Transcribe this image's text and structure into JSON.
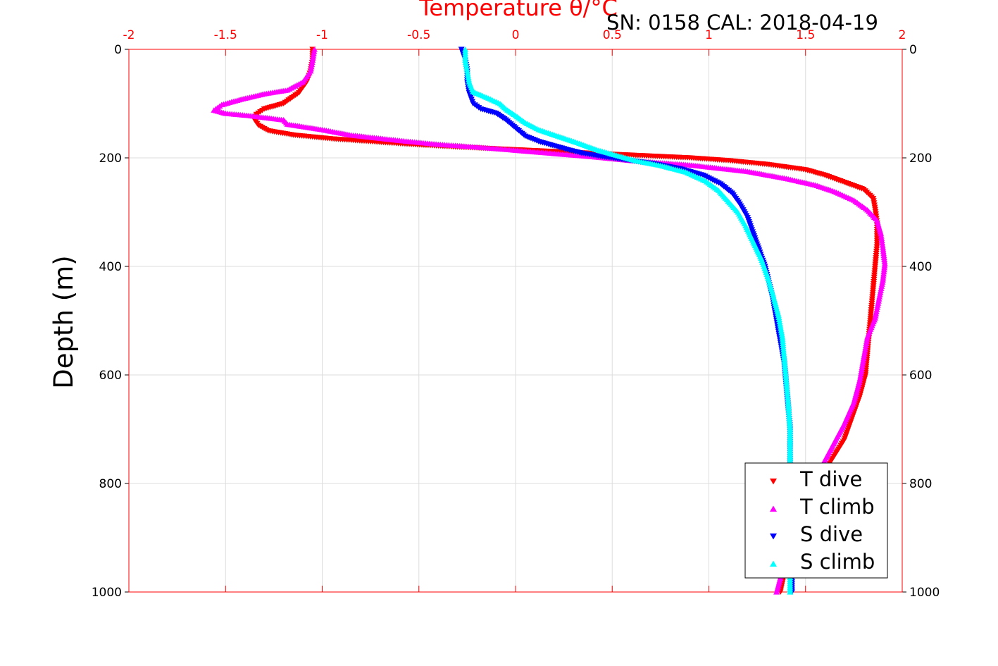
{
  "chart_data": {
    "type": "scatter",
    "title": "Temperature θ/°C",
    "subtitle": "SN: 0158  CAL: 2018-04-19",
    "xlabel": "Temperature θ/°C",
    "ylabel": "Depth (m)",
    "xlim": [
      -2,
      2
    ],
    "ylim": [
      0,
      1000
    ],
    "y_reversed": true,
    "grid": true,
    "x_ticks": [
      "-2",
      "-1.5",
      "-1",
      "-0.5",
      "0",
      "0.5",
      "1",
      "1.5",
      "2"
    ],
    "y_ticks": [
      "0",
      "200",
      "400",
      "600",
      "800",
      "1000"
    ],
    "legend_position": "bottom-right",
    "series": [
      {
        "name": "T dive",
        "color": "#ff0000",
        "marker": "triangle-down",
        "points": [
          [
            -1.05,
            0
          ],
          [
            -1.05,
            20
          ],
          [
            -1.06,
            40
          ],
          [
            -1.08,
            60
          ],
          [
            -1.12,
            80
          ],
          [
            -1.2,
            100
          ],
          [
            -1.3,
            110
          ],
          [
            -1.34,
            120
          ],
          [
            -1.35,
            130
          ],
          [
            -1.33,
            140
          ],
          [
            -1.28,
            150
          ],
          [
            -1.15,
            158
          ],
          [
            -0.95,
            165
          ],
          [
            -0.75,
            170
          ],
          [
            -0.55,
            175
          ],
          [
            -0.3,
            180
          ],
          [
            0.0,
            185
          ],
          [
            0.3,
            190
          ],
          [
            0.6,
            195
          ],
          [
            0.9,
            200
          ],
          [
            1.1,
            205
          ],
          [
            1.3,
            212
          ],
          [
            1.5,
            222
          ],
          [
            1.6,
            232
          ],
          [
            1.7,
            245
          ],
          [
            1.8,
            258
          ],
          [
            1.85,
            275
          ],
          [
            1.86,
            295
          ],
          [
            1.87,
            320
          ],
          [
            1.87,
            360
          ],
          [
            1.86,
            400
          ],
          [
            1.85,
            440
          ],
          [
            1.84,
            480
          ],
          [
            1.83,
            520
          ],
          [
            1.82,
            560
          ],
          [
            1.81,
            600
          ],
          [
            1.78,
            640
          ],
          [
            1.74,
            680
          ],
          [
            1.7,
            720
          ],
          [
            1.63,
            760
          ],
          [
            1.56,
            800
          ],
          [
            1.5,
            850
          ],
          [
            1.45,
            900
          ],
          [
            1.4,
            950
          ],
          [
            1.37,
            1000
          ]
        ]
      },
      {
        "name": "T climb",
        "color": "#ff00ff",
        "marker": "triangle-up",
        "points": [
          [
            -1.04,
            0
          ],
          [
            -1.05,
            20
          ],
          [
            -1.06,
            40
          ],
          [
            -1.1,
            60
          ],
          [
            -1.18,
            75
          ],
          [
            -1.3,
            82
          ],
          [
            -1.42,
            92
          ],
          [
            -1.52,
            102
          ],
          [
            -1.56,
            112
          ],
          [
            -1.5,
            118
          ],
          [
            -1.38,
            122
          ],
          [
            -1.2,
            130
          ],
          [
            -1.18,
            138
          ],
          [
            -1.0,
            148
          ],
          [
            -0.85,
            158
          ],
          [
            -0.6,
            168
          ],
          [
            -0.4,
            175
          ],
          [
            -0.2,
            180
          ],
          [
            0.0,
            186
          ],
          [
            0.2,
            192
          ],
          [
            0.4,
            198
          ],
          [
            0.6,
            205
          ],
          [
            0.9,
            213
          ],
          [
            1.2,
            225
          ],
          [
            1.4,
            238
          ],
          [
            1.55,
            250
          ],
          [
            1.65,
            262
          ],
          [
            1.75,
            278
          ],
          [
            1.82,
            296
          ],
          [
            1.87,
            315
          ],
          [
            1.89,
            340
          ],
          [
            1.9,
            365
          ],
          [
            1.91,
            395
          ],
          [
            1.9,
            425
          ],
          [
            1.88,
            460
          ],
          [
            1.86,
            495
          ],
          [
            1.82,
            530
          ],
          [
            1.8,
            570
          ],
          [
            1.78,
            610
          ],
          [
            1.75,
            650
          ],
          [
            1.7,
            690
          ],
          [
            1.64,
            730
          ],
          [
            1.58,
            770
          ],
          [
            1.52,
            810
          ],
          [
            1.47,
            860
          ],
          [
            1.42,
            910
          ],
          [
            1.38,
            960
          ],
          [
            1.35,
            1000
          ]
        ]
      },
      {
        "name": "S dive",
        "color": "#0000ff",
        "marker": "triangle-down",
        "points": [
          [
            -0.28,
            0
          ],
          [
            -0.26,
            20
          ],
          [
            -0.25,
            40
          ],
          [
            -0.25,
            60
          ],
          [
            -0.24,
            80
          ],
          [
            -0.22,
            100
          ],
          [
            -0.18,
            110
          ],
          [
            -0.1,
            118
          ],
          [
            -0.05,
            130
          ],
          [
            0.0,
            145
          ],
          [
            0.05,
            160
          ],
          [
            0.12,
            170
          ],
          [
            0.2,
            178
          ],
          [
            0.28,
            186
          ],
          [
            0.35,
            192
          ],
          [
            0.45,
            198
          ],
          [
            0.55,
            203
          ],
          [
            0.7,
            210
          ],
          [
            0.85,
            220
          ],
          [
            0.97,
            232
          ],
          [
            1.06,
            248
          ],
          [
            1.12,
            265
          ],
          [
            1.16,
            285
          ],
          [
            1.2,
            310
          ],
          [
            1.23,
            340
          ],
          [
            1.26,
            370
          ],
          [
            1.29,
            400
          ],
          [
            1.31,
            430
          ],
          [
            1.33,
            460
          ],
          [
            1.35,
            500
          ],
          [
            1.37,
            540
          ],
          [
            1.39,
            580
          ],
          [
            1.4,
            620
          ],
          [
            1.41,
            660
          ],
          [
            1.42,
            700
          ],
          [
            1.42,
            750
          ],
          [
            1.42,
            800
          ],
          [
            1.42,
            850
          ],
          [
            1.43,
            900
          ],
          [
            1.43,
            950
          ],
          [
            1.43,
            1000
          ]
        ]
      },
      {
        "name": "S climb",
        "color": "#00ffff",
        "marker": "triangle-up",
        "points": [
          [
            -0.26,
            0
          ],
          [
            -0.26,
            20
          ],
          [
            -0.25,
            40
          ],
          [
            -0.24,
            60
          ],
          [
            -0.22,
            78
          ],
          [
            -0.14,
            90
          ],
          [
            -0.08,
            100
          ],
          [
            -0.05,
            110
          ],
          [
            0.0,
            122
          ],
          [
            0.05,
            135
          ],
          [
            0.12,
            148
          ],
          [
            0.22,
            160
          ],
          [
            0.32,
            172
          ],
          [
            0.42,
            185
          ],
          [
            0.52,
            195
          ],
          [
            0.62,
            205
          ],
          [
            0.75,
            214
          ],
          [
            0.88,
            226
          ],
          [
            0.98,
            242
          ],
          [
            1.05,
            260
          ],
          [
            1.1,
            280
          ],
          [
            1.15,
            300
          ],
          [
            1.19,
            325
          ],
          [
            1.23,
            355
          ],
          [
            1.27,
            385
          ],
          [
            1.3,
            415
          ],
          [
            1.33,
            450
          ],
          [
            1.36,
            490
          ],
          [
            1.38,
            530
          ],
          [
            1.39,
            570
          ],
          [
            1.4,
            610
          ],
          [
            1.41,
            650
          ],
          [
            1.42,
            700
          ],
          [
            1.42,
            750
          ],
          [
            1.42,
            800
          ],
          [
            1.42,
            850
          ],
          [
            1.42,
            900
          ],
          [
            1.42,
            950
          ],
          [
            1.42,
            1000
          ]
        ]
      }
    ]
  }
}
